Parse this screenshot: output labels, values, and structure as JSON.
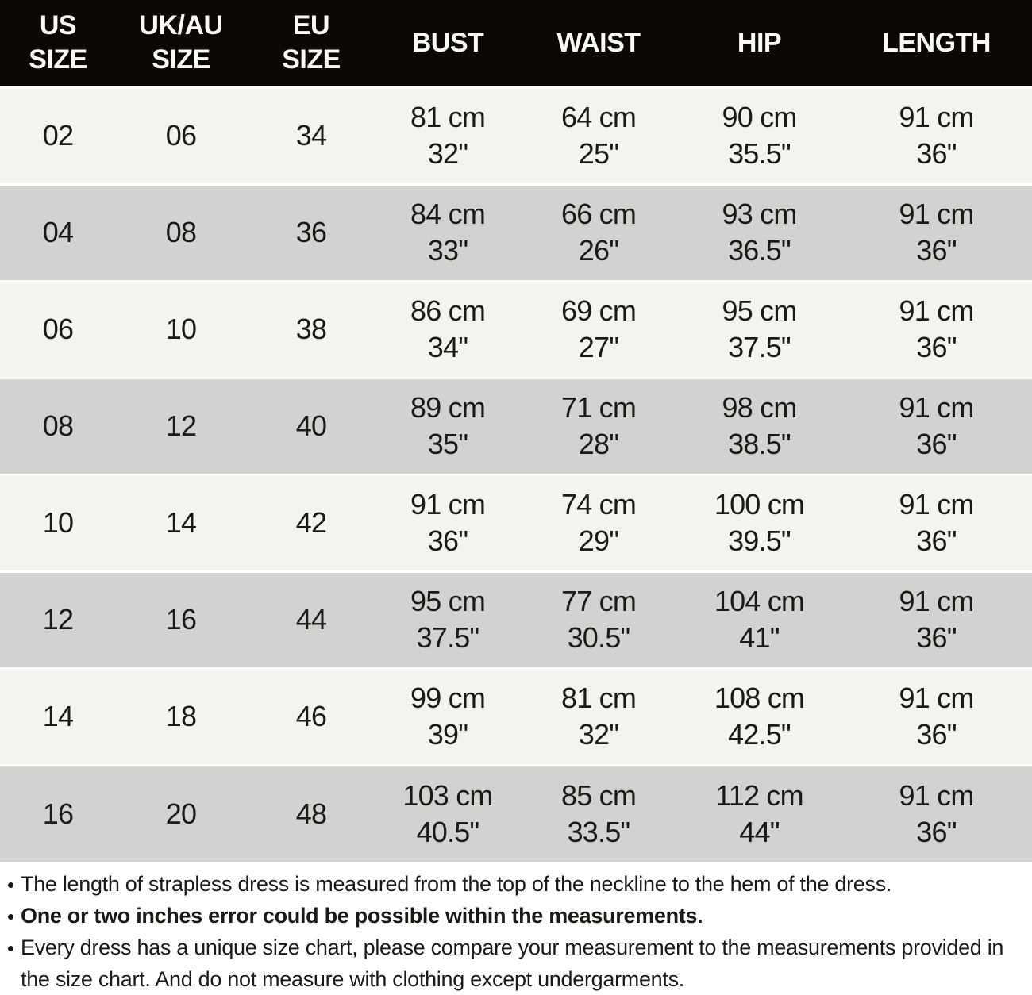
{
  "colors": {
    "header-bg": "#0b0805",
    "header-text": "#fbfaf5",
    "row-light": "#f5f3ef",
    "row-gray": "#d2d3d0",
    "text": "#1c1a17",
    "separator": "#ffffff"
  },
  "table": {
    "headers": [
      "US\nSIZE",
      "UK/AU\nSIZE",
      "EU\nSIZE",
      "BUST",
      "WAIST",
      "HIP",
      "LENGTH"
    ],
    "rows": [
      {
        "us": "02",
        "uk": "06",
        "eu": "34",
        "bust": {
          "cm": "81 cm",
          "in": "32\""
        },
        "waist": {
          "cm": "64 cm",
          "in": "25\""
        },
        "hip": {
          "cm": "90 cm",
          "in": "35.5\""
        },
        "len": {
          "cm": "91 cm",
          "in": "36\""
        }
      },
      {
        "us": "04",
        "uk": "08",
        "eu": "36",
        "bust": {
          "cm": "84 cm",
          "in": "33\""
        },
        "waist": {
          "cm": "66 cm",
          "in": "26\""
        },
        "hip": {
          "cm": "93 cm",
          "in": "36.5\""
        },
        "len": {
          "cm": "91 cm",
          "in": "36\""
        }
      },
      {
        "us": "06",
        "uk": "10",
        "eu": "38",
        "bust": {
          "cm": "86 cm",
          "in": "34\""
        },
        "waist": {
          "cm": "69 cm",
          "in": "27\""
        },
        "hip": {
          "cm": "95 cm",
          "in": "37.5\""
        },
        "len": {
          "cm": "91 cm",
          "in": "36\""
        }
      },
      {
        "us": "08",
        "uk": "12",
        "eu": "40",
        "bust": {
          "cm": "89 cm",
          "in": "35\""
        },
        "waist": {
          "cm": "71 cm",
          "in": "28\""
        },
        "hip": {
          "cm": "98 cm",
          "in": "38.5\""
        },
        "len": {
          "cm": "91 cm",
          "in": "36\""
        }
      },
      {
        "us": "10",
        "uk": "14",
        "eu": "42",
        "bust": {
          "cm": "91 cm",
          "in": "36\""
        },
        "waist": {
          "cm": "74 cm",
          "in": "29\""
        },
        "hip": {
          "cm": "100 cm",
          "in": "39.5\""
        },
        "len": {
          "cm": "91 cm",
          "in": "36\""
        }
      },
      {
        "us": "12",
        "uk": "16",
        "eu": "44",
        "bust": {
          "cm": "95 cm",
          "in": "37.5\""
        },
        "waist": {
          "cm": "77 cm",
          "in": "30.5\""
        },
        "hip": {
          "cm": "104 cm",
          "in": "41\""
        },
        "len": {
          "cm": "91 cm",
          "in": "36\""
        }
      },
      {
        "us": "14",
        "uk": "18",
        "eu": "46",
        "bust": {
          "cm": "99 cm",
          "in": "39\""
        },
        "waist": {
          "cm": "81 cm",
          "in": "32\""
        },
        "hip": {
          "cm": "108 cm",
          "in": "42.5\""
        },
        "len": {
          "cm": "91 cm",
          "in": "36\""
        }
      },
      {
        "us": "16",
        "uk": "20",
        "eu": "48",
        "bust": {
          "cm": "103 cm",
          "in": "40.5\""
        },
        "waist": {
          "cm": "85 cm",
          "in": "33.5\""
        },
        "hip": {
          "cm": "112 cm",
          "in": "44\""
        },
        "len": {
          "cm": "91 cm",
          "in": "36\""
        }
      }
    ]
  },
  "notes": [
    "The length of strapless dress is measured from the top of the neckline to the hem of the dress.",
    "One or two inches error could be possible within the measurements.",
    "Every dress has a unique size chart, please compare your measurement to the measurements provided in the size chart. And do not measure with clothing except undergarments."
  ],
  "chart_data": {
    "type": "table",
    "title": "Dress size chart",
    "columns": [
      "US SIZE",
      "UK/AU SIZE",
      "EU SIZE",
      "BUST",
      "WAIST",
      "HIP",
      "LENGTH"
    ],
    "units": {
      "primary": "cm",
      "secondary": "inches"
    },
    "rows": [
      {
        "us_size": "02",
        "uk_au_size": "06",
        "eu_size": "34",
        "bust": {
          "cm": 81,
          "in": 32
        },
        "waist": {
          "cm": 64,
          "in": 25
        },
        "hip": {
          "cm": 90,
          "in": 35.5
        },
        "length": {
          "cm": 91,
          "in": 36
        }
      },
      {
        "us_size": "04",
        "uk_au_size": "08",
        "eu_size": "36",
        "bust": {
          "cm": 84,
          "in": 33
        },
        "waist": {
          "cm": 66,
          "in": 26
        },
        "hip": {
          "cm": 93,
          "in": 36.5
        },
        "length": {
          "cm": 91,
          "in": 36
        }
      },
      {
        "us_size": "06",
        "uk_au_size": "10",
        "eu_size": "38",
        "bust": {
          "cm": 86,
          "in": 34
        },
        "waist": {
          "cm": 69,
          "in": 27
        },
        "hip": {
          "cm": 95,
          "in": 37.5
        },
        "length": {
          "cm": 91,
          "in": 36
        }
      },
      {
        "us_size": "08",
        "uk_au_size": "12",
        "eu_size": "40",
        "bust": {
          "cm": 89,
          "in": 35
        },
        "waist": {
          "cm": 71,
          "in": 28
        },
        "hip": {
          "cm": 98,
          "in": 38.5
        },
        "length": {
          "cm": 91,
          "in": 36
        }
      },
      {
        "us_size": "10",
        "uk_au_size": "14",
        "eu_size": "42",
        "bust": {
          "cm": 91,
          "in": 36
        },
        "waist": {
          "cm": 74,
          "in": 29
        },
        "hip": {
          "cm": 100,
          "in": 39.5
        },
        "length": {
          "cm": 91,
          "in": 36
        }
      },
      {
        "us_size": "12",
        "uk_au_size": "16",
        "eu_size": "44",
        "bust": {
          "cm": 95,
          "in": 37.5
        },
        "waist": {
          "cm": 77,
          "in": 30.5
        },
        "hip": {
          "cm": 104,
          "in": 41
        },
        "length": {
          "cm": 91,
          "in": 36
        }
      },
      {
        "us_size": "14",
        "uk_au_size": "18",
        "eu_size": "46",
        "bust": {
          "cm": 99,
          "in": 39
        },
        "waist": {
          "cm": 81,
          "in": 32
        },
        "hip": {
          "cm": 108,
          "in": 42.5
        },
        "length": {
          "cm": 91,
          "in": 36
        }
      },
      {
        "us_size": "16",
        "uk_au_size": "20",
        "eu_size": "48",
        "bust": {
          "cm": 103,
          "in": 40.5
        },
        "waist": {
          "cm": 85,
          "in": 33.5
        },
        "hip": {
          "cm": 112,
          "in": 44
        },
        "length": {
          "cm": 91,
          "in": 36
        }
      }
    ],
    "notes": [
      "The length of strapless dress is measured from the top of the neckline to the hem of the dress.",
      "One or two inches error could be possible within the measurements.",
      "Every dress has a unique size chart, please compare your measurement to the measurements provided in the size chart. And do not measure with clothing except undergarments."
    ]
  }
}
